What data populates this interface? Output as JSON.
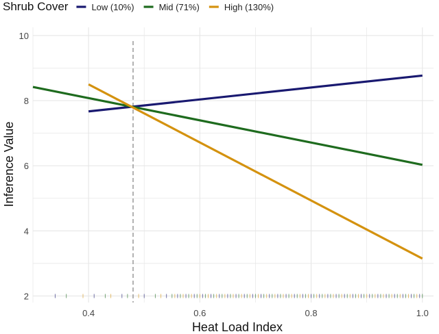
{
  "chart_data": {
    "type": "line",
    "title": "",
    "xlabel": "Heat Load Index",
    "ylabel": "Inference Value",
    "xlim": [
      0.3,
      1.02
    ],
    "ylim": [
      1.8,
      10.25
    ],
    "xticks": [
      0.4,
      0.6,
      0.8,
      1.0
    ],
    "xtick_labels": [
      "0.4",
      "0.6",
      "0.8",
      "1.0"
    ],
    "yticks": [
      2,
      4,
      6,
      8,
      10
    ],
    "ytick_labels": [
      "2",
      "4",
      "6",
      "8",
      "10"
    ],
    "grid": true,
    "legend": {
      "title": "Shrub Cover",
      "placement": "top"
    },
    "series": [
      {
        "name": "Low (10%)",
        "color": "#191970",
        "x": [
          0.4,
          1.0
        ],
        "y": [
          7.67,
          8.77
        ]
      },
      {
        "name": "Mid (71%)",
        "color": "#1E6B1E",
        "x": [
          0.3,
          1.0
        ],
        "y": [
          8.42,
          6.03
        ]
      },
      {
        "name": "High (130%)",
        "color": "#D4920F",
        "x": [
          0.4,
          1.0
        ],
        "y": [
          8.5,
          3.15
        ]
      }
    ],
    "vline": {
      "x": 0.48,
      "style": "dashed",
      "color": "#999999"
    },
    "rug": {
      "y": 2,
      "colors": [
        "#191970",
        "#1E6B1E",
        "#D4920F"
      ],
      "x": [
        0.34,
        0.36,
        0.39,
        0.41,
        0.43,
        0.44,
        0.46,
        0.47,
        0.49,
        0.5,
        0.52,
        0.53,
        0.54,
        0.55,
        0.555,
        0.56,
        0.565,
        0.57,
        0.575,
        0.58,
        0.585,
        0.59,
        0.595,
        0.6,
        0.605,
        0.61,
        0.615,
        0.62,
        0.625,
        0.63,
        0.635,
        0.64,
        0.645,
        0.65,
        0.655,
        0.66,
        0.665,
        0.67,
        0.675,
        0.68,
        0.685,
        0.69,
        0.695,
        0.7,
        0.705,
        0.71,
        0.715,
        0.72,
        0.725,
        0.73,
        0.735,
        0.74,
        0.745,
        0.75,
        0.755,
        0.76,
        0.765,
        0.77,
        0.775,
        0.78,
        0.785,
        0.79,
        0.795,
        0.8,
        0.805,
        0.81,
        0.815,
        0.82,
        0.825,
        0.83,
        0.835,
        0.84,
        0.845,
        0.85,
        0.855,
        0.86,
        0.865,
        0.87,
        0.875,
        0.88,
        0.885,
        0.89,
        0.895,
        0.9,
        0.905,
        0.91,
        0.915,
        0.92,
        0.925,
        0.93,
        0.935,
        0.94,
        0.945,
        0.95,
        0.955,
        0.96,
        0.965,
        0.97,
        0.975,
        0.98,
        0.985,
        0.99,
        0.995,
        1.0
      ]
    }
  }
}
